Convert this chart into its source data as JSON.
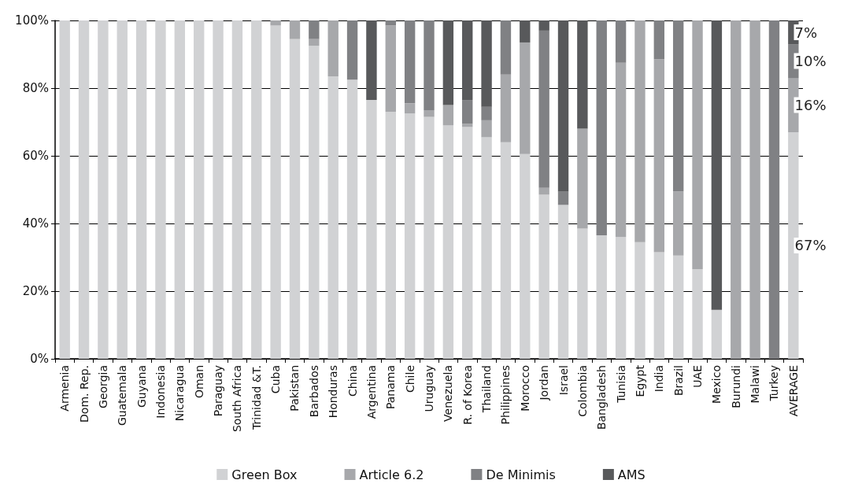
{
  "chart_data": {
    "type": "bar",
    "stacked": true,
    "categories": [
      "Armenia",
      "Dom. Rep.",
      "Georgia",
      "Guatemala",
      "Guyana",
      "Indonesia",
      "Nicaragua",
      "Oman",
      "Paraguay",
      "South Africa",
      "Trinidad &T.",
      "Cuba",
      "Pakistan",
      "Barbados",
      "Honduras",
      "China",
      "Argentina",
      "Panama",
      "Chile",
      "Uruguay",
      "Venezuela",
      "R. of Korea",
      "Thailand",
      "Philippines",
      "Morocco",
      "Jordan",
      "Israel",
      "Colombia",
      "Bangladesh",
      "Tunisia",
      "Egypt",
      "India",
      "Brazil",
      "UAE",
      "Mexico",
      "Burundi",
      "Malawi",
      "Turkey",
      "AVERAGE"
    ],
    "series": [
      {
        "name": "Green Box",
        "color": "#d1d2d4",
        "values": [
          100,
          100,
          100,
          100,
          100,
          100,
          100,
          100,
          100,
          100,
          100,
          98.5,
          94.5,
          92.5,
          83.5,
          82.5,
          76.5,
          73,
          72.5,
          71.5,
          69,
          68.5,
          65.5,
          64,
          60.5,
          48.5,
          45.5,
          38.5,
          36.5,
          36,
          34.5,
          31.5,
          30.5,
          26.5,
          14.5,
          0,
          0,
          0,
          67
        ],
        "value_labels": [
          null,
          null,
          null,
          null,
          null,
          null,
          null,
          null,
          null,
          null,
          null,
          null,
          null,
          null,
          null,
          null,
          null,
          null,
          null,
          null,
          null,
          null,
          null,
          null,
          null,
          null,
          null,
          null,
          null,
          null,
          null,
          null,
          null,
          null,
          null,
          null,
          null,
          null,
          "67%"
        ]
      },
      {
        "name": "Article 6.2",
        "color": "#a7a8ab",
        "values": [
          0,
          0,
          0,
          0,
          0,
          0,
          0,
          0,
          0,
          0,
          0,
          1.5,
          5.5,
          2,
          16.5,
          0,
          0,
          25.5,
          3,
          2,
          6,
          1,
          5,
          20,
          33,
          2,
          0,
          29.5,
          0,
          51.5,
          65.5,
          57,
          19,
          73.5,
          0,
          100,
          100,
          0,
          16
        ],
        "value_labels": [
          null,
          null,
          null,
          null,
          null,
          null,
          null,
          null,
          null,
          null,
          null,
          null,
          null,
          null,
          null,
          null,
          null,
          null,
          null,
          null,
          null,
          null,
          null,
          null,
          null,
          null,
          null,
          null,
          null,
          null,
          null,
          null,
          null,
          null,
          null,
          null,
          null,
          null,
          "16%"
        ]
      },
      {
        "name": "De Minimis",
        "color": "#808184",
        "values": [
          0,
          0,
          0,
          0,
          0,
          0,
          0,
          0,
          0,
          0,
          0,
          0,
          0,
          5.5,
          0,
          17.5,
          0,
          1.5,
          24.5,
          26.5,
          0,
          7,
          4,
          16,
          0,
          46.5,
          4,
          0,
          63.5,
          12.5,
          0,
          11.5,
          50.5,
          0,
          0,
          0,
          0,
          100,
          10
        ],
        "value_labels": [
          null,
          null,
          null,
          null,
          null,
          null,
          null,
          null,
          null,
          null,
          null,
          null,
          null,
          null,
          null,
          null,
          null,
          null,
          null,
          null,
          null,
          null,
          null,
          null,
          null,
          null,
          null,
          null,
          null,
          null,
          null,
          null,
          null,
          null,
          null,
          null,
          null,
          null,
          "10%"
        ]
      },
      {
        "name": "AMS",
        "color": "#58595b",
        "values": [
          0,
          0,
          0,
          0,
          0,
          0,
          0,
          0,
          0,
          0,
          0,
          0,
          0,
          0,
          0,
          0,
          23.5,
          0,
          0,
          0,
          25,
          23.5,
          25.5,
          0,
          6.5,
          3,
          50.5,
          32,
          0,
          0,
          0,
          0,
          0,
          0,
          85.5,
          0,
          0,
          0,
          7
        ],
        "value_labels": [
          null,
          null,
          null,
          null,
          null,
          null,
          null,
          null,
          null,
          null,
          null,
          null,
          null,
          null,
          null,
          null,
          null,
          null,
          null,
          null,
          null,
          null,
          null,
          null,
          null,
          null,
          null,
          null,
          null,
          null,
          null,
          null,
          null,
          null,
          null,
          null,
          null,
          null,
          "7%"
        ]
      }
    ],
    "ylim": [
      0,
      100
    ],
    "yticks": [
      {
        "value": 0,
        "label": "0%"
      },
      {
        "value": 20,
        "label": "20%"
      },
      {
        "value": 40,
        "label": "40%"
      },
      {
        "value": 60,
        "label": "60%"
      },
      {
        "value": 80,
        "label": "80%"
      },
      {
        "value": 100,
        "label": "100%"
      }
    ],
    "grid": "y",
    "legend": "bottom"
  }
}
